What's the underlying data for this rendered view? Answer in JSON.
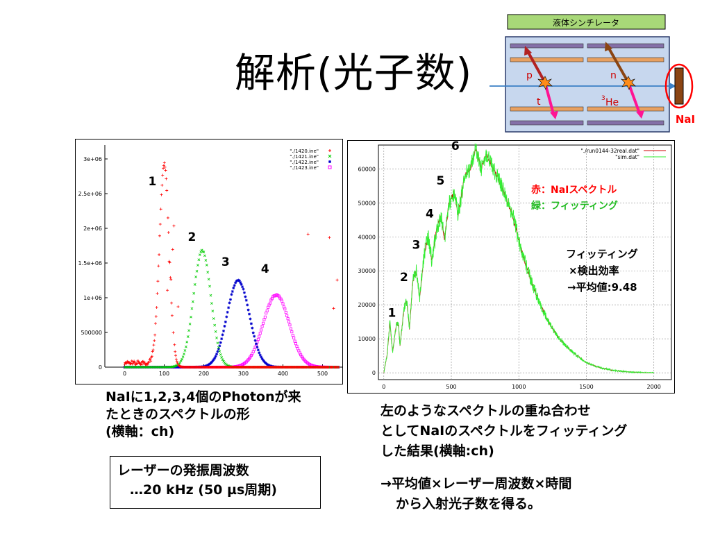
{
  "slide": {
    "title": "解析(光子数)",
    "left_caption": [
      "NaIに1,2,3,4個のPhotonが来",
      "たときのスペクトルの形",
      "(横軸：ch)"
    ],
    "box_lines": [
      "レーザーの発振周波数",
      "…20 kHz (50 µs周期)"
    ],
    "right_caption": [
      "左のようなスペクトルの重ね合わせ",
      "としてNaIのスペクトルをフィッティング",
      "した結果(横軸:ch)"
    ],
    "conclusion": [
      "→平均値×レーザー周波数×時間",
      "から入射光子数を得る。"
    ]
  },
  "diagram": {
    "scintillator_label": "液体シンチレータ",
    "nai_label": "NaI",
    "p_label": "p",
    "n_label": "n",
    "t_label": "t",
    "he_sup": "3",
    "he_label": "He",
    "colors": {
      "p_arrow": "#b22222",
      "n_arrow": "#8b4513",
      "t_arrow": "#ff1493",
      "nai_block": "#8b4513",
      "nai_circle": "#ff0000",
      "beam": "#3a7fc4",
      "tank": "#c7d7ee",
      "bar_orange": "#e8a060",
      "bar_purple": "#8470a8",
      "scint": "#a8d878"
    }
  },
  "chart_data": [
    {
      "type": "scatter",
      "xlim": [
        -50,
        550
      ],
      "ylim": [
        0,
        3200000
      ],
      "xticks": [
        0,
        100,
        200,
        300,
        400,
        500
      ],
      "xtick_labels": [
        "0",
        "100",
        "200",
        "300",
        "400",
        "500"
      ],
      "yticks": [
        0,
        500000,
        1000000,
        1500000,
        2000000,
        2500000,
        3000000
      ],
      "ytick_labels": [
        "0",
        "500000",
        "1e+06",
        "1.5e+06",
        "2e+06",
        "2.5e+06",
        "3e+06"
      ],
      "legend_position": "top-right",
      "peak_labels": [
        {
          "text": "1",
          "x": 70,
          "y": 2620000
        },
        {
          "text": "2",
          "x": 170,
          "y": 1820000
        },
        {
          "text": "3",
          "x": 255,
          "y": 1460000
        },
        {
          "text": "4",
          "x": 355,
          "y": 1360000
        }
      ],
      "series": [
        {
          "name": "\"./1420.ine\"",
          "marker": "+",
          "color": "#ff0000",
          "peak_x": 100,
          "peak_y": 2900000,
          "sigma": 12
        },
        {
          "name": "\"./1421.ine\"",
          "marker": "x",
          "color": "#00cc00",
          "peak_x": 196,
          "peak_y": 1680000,
          "sigma": 22
        },
        {
          "name": "\"./1422.ine\"",
          "marker": "*",
          "color": "#0000cc",
          "peak_x": 287,
          "peak_y": 1250000,
          "sigma": 28
        },
        {
          "name": "\"./1423.ine\"",
          "marker": "□",
          "color": "#ff00ff",
          "peak_x": 383,
          "peak_y": 1040000,
          "sigma": 33
        }
      ]
    },
    {
      "type": "line",
      "xlim": [
        -40,
        2130
      ],
      "ylim": [
        -2000,
        67000
      ],
      "xticks": [
        0,
        500,
        1000,
        1500,
        2000
      ],
      "xtick_labels": [
        "0",
        "500",
        "1000",
        "1500",
        "2000"
      ],
      "yticks": [
        0,
        10000,
        20000,
        30000,
        40000,
        50000,
        60000
      ],
      "ytick_labels": [
        "0",
        "10000",
        "20000",
        "30000",
        "40000",
        "50000",
        "60000"
      ],
      "grid": true,
      "legend_position": "top-right",
      "series": [
        {
          "name": "\"./run0144-32real.dat\"",
          "color": "#cc0000"
        },
        {
          "name": "\"sim.dat\"",
          "color": "#33ee33"
        }
      ],
      "peak_labels": [
        {
          "text": "1",
          "x": 60,
          "y": 16500
        },
        {
          "text": "2",
          "x": 150,
          "y": 27000
        },
        {
          "text": "3",
          "x": 240,
          "y": 36500
        },
        {
          "text": "4",
          "x": 340,
          "y": 45700
        },
        {
          "text": "5",
          "x": 420,
          "y": 55400
        },
        {
          "text": "6",
          "x": 530,
          "y": 65600
        }
      ],
      "spectrum_points": [
        [
          0,
          0
        ],
        [
          25,
          5500
        ],
        [
          45,
          15000
        ],
        [
          65,
          6000
        ],
        [
          95,
          15000
        ],
        [
          110,
          13500
        ],
        [
          120,
          8000
        ],
        [
          150,
          19000
        ],
        [
          170,
          21000
        ],
        [
          190,
          13000
        ],
        [
          215,
          27000
        ],
        [
          240,
          30000
        ],
        [
          265,
          22000
        ],
        [
          300,
          35000
        ],
        [
          330,
          40000
        ],
        [
          355,
          33000
        ],
        [
          390,
          42000
        ],
        [
          425,
          46500
        ],
        [
          450,
          39000
        ],
        [
          480,
          49500
        ],
        [
          520,
          53000
        ],
        [
          550,
          46500
        ],
        [
          600,
          58000
        ],
        [
          640,
          60000
        ],
        [
          680,
          66000
        ],
        [
          720,
          60000
        ],
        [
          760,
          64500
        ],
        [
          800,
          61000
        ],
        [
          850,
          57000
        ],
        [
          900,
          52000
        ],
        [
          950,
          47000
        ],
        [
          1000,
          39000
        ],
        [
          1050,
          32000
        ],
        [
          1100,
          26000
        ],
        [
          1150,
          21000
        ],
        [
          1200,
          16500
        ],
        [
          1250,
          13000
        ],
        [
          1300,
          10000
        ],
        [
          1400,
          6000
        ],
        [
          1500,
          3000
        ],
        [
          1600,
          1500
        ],
        [
          1700,
          700
        ],
        [
          1800,
          300
        ],
        [
          1950,
          0
        ]
      ],
      "annotation_red": "赤：NaIスペクトル",
      "annotation_green": "緑：フィッティング",
      "fit_note": [
        "フィッティング",
        "×検出効率",
        "→平均値:9.48"
      ]
    }
  ]
}
